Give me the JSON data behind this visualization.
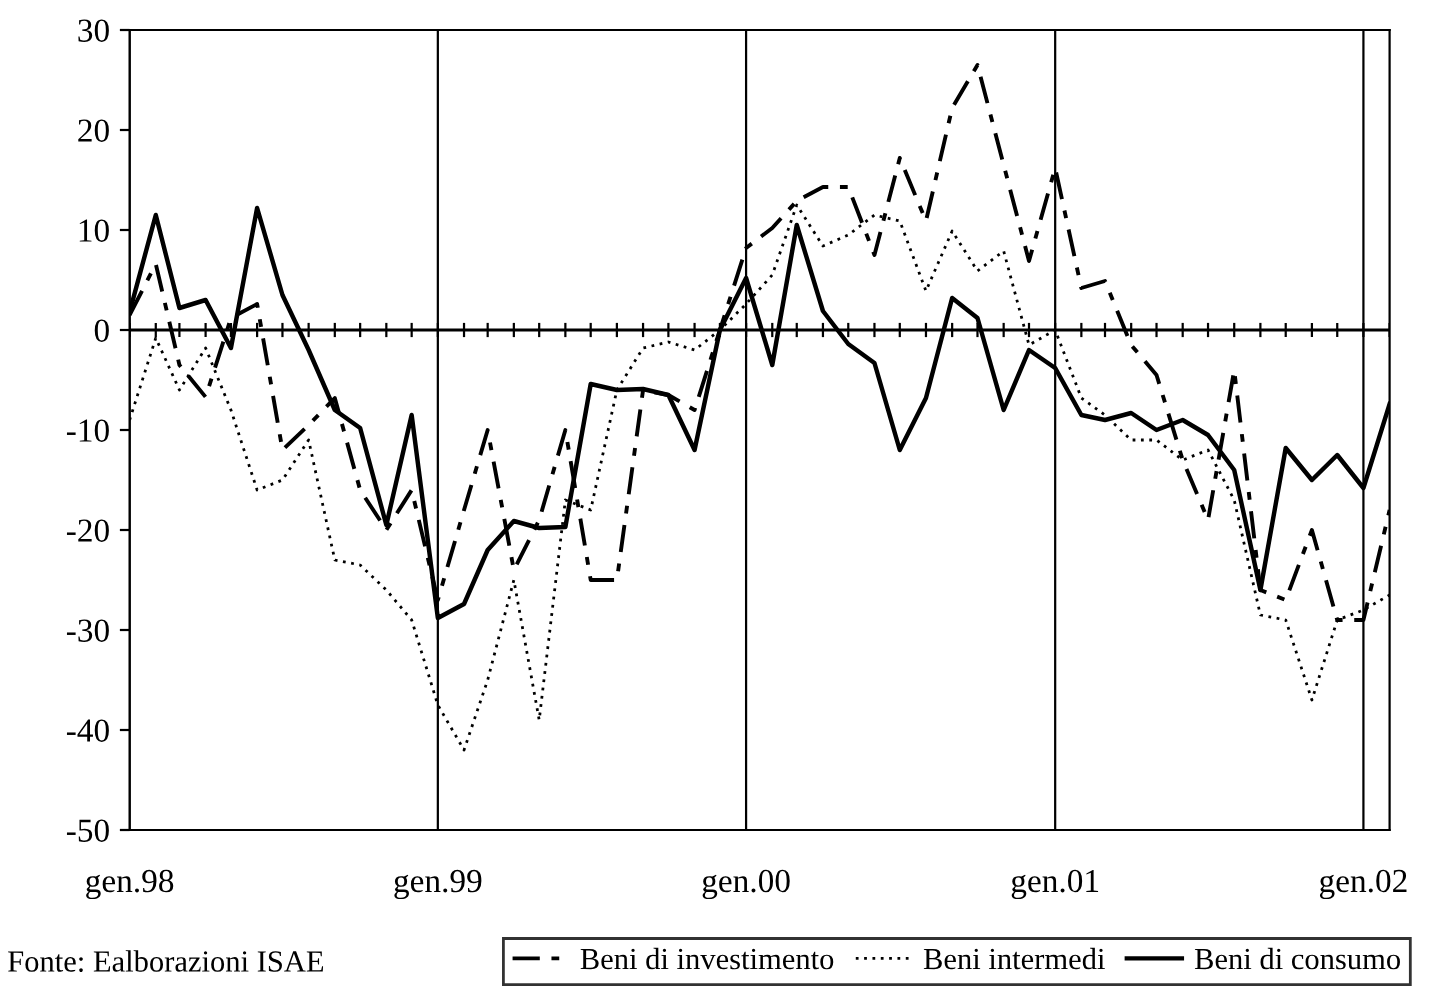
{
  "chart_data": {
    "type": "line",
    "x": [
      "1998-01",
      "1998-02",
      "1998-03",
      "1998-04",
      "1998-05",
      "1998-06",
      "1998-07",
      "1998-08",
      "1998-09",
      "1998-10",
      "1998-11",
      "1998-12",
      "1999-01",
      "1999-02",
      "1999-03",
      "1999-04",
      "1999-05",
      "1999-06",
      "1999-07",
      "1999-08",
      "1999-09",
      "1999-10",
      "1999-11",
      "1999-12",
      "2000-01",
      "2000-02",
      "2000-03",
      "2000-04",
      "2000-05",
      "2000-06",
      "2000-07",
      "2000-08",
      "2000-09",
      "2000-10",
      "2000-11",
      "2000-12",
      "2001-01",
      "2001-02",
      "2001-03",
      "2001-04",
      "2001-05",
      "2001-06",
      "2001-07",
      "2001-08",
      "2001-09",
      "2001-10",
      "2001-11",
      "2001-12",
      "2002-01",
      "2002-02"
    ],
    "series": [
      {
        "name": "Beni di investimento",
        "color": "#000000",
        "line_style": "dashed",
        "values": [
          1.5,
          6.6,
          -3.5,
          -6.7,
          1.2,
          2.6,
          -12,
          -9.5,
          -6.8,
          -16,
          -20,
          -16,
          -27,
          -18,
          -10,
          -24,
          -19,
          -10,
          -25,
          -25,
          -6,
          -6.5,
          -8,
          0,
          8.2,
          10.2,
          12.9,
          14.3,
          14.3,
          7.5,
          17.2,
          10.9,
          22.2,
          26.5,
          16.5,
          6.9,
          16.2,
          4.2,
          4.9,
          -1.5,
          -4.5,
          -13,
          -19,
          -4,
          -26,
          -27,
          -20,
          -29,
          -29,
          -18
        ]
      },
      {
        "name": "Beni intermedi",
        "color": "#000000",
        "line_style": "dotted",
        "values": [
          -9,
          -0.8,
          -6,
          -1.8,
          -8,
          -16,
          -15,
          -11,
          -23,
          -23.5,
          -26,
          -29,
          -37.5,
          -42,
          -35,
          -25,
          -39,
          -17,
          -18,
          -6,
          -1.8,
          -1.2,
          -2,
          0,
          2.6,
          5.5,
          12.5,
          8.4,
          9.5,
          11.5,
          10.9,
          3.9,
          9.9,
          5.9,
          7.9,
          -1.5,
          0,
          -6.8,
          -8.5,
          -11,
          -11,
          -13,
          -12,
          -17,
          -28.5,
          -29,
          -37,
          -29,
          -28,
          -26.5
        ]
      },
      {
        "name": "Beni di consumo",
        "color": "#000000",
        "line_style": "solid",
        "values": [
          1.8,
          11.5,
          2.2,
          3,
          -1.8,
          12.2,
          3.5,
          -2,
          -8,
          -9.8,
          -19.5,
          -8.5,
          -28.8,
          -27.4,
          -22,
          -19.1,
          -19.8,
          -19.7,
          -5.4,
          -6,
          -5.9,
          -6.5,
          -12,
          0,
          5.2,
          -3.5,
          10.5,
          1.9,
          -1.4,
          -3.3,
          -12,
          -6.8,
          3.2,
          1.2,
          -8,
          -2,
          -3.8,
          -8.5,
          -9,
          -8.3,
          -10,
          -9,
          -10.5,
          -14,
          -26,
          -11.8,
          -15,
          -12.5,
          -15.8,
          -7.4
        ]
      }
    ],
    "xlim": [
      "1998-01",
      "2002-02"
    ],
    "xticks": [
      {
        "value": "1998-01",
        "label": "gen.98"
      },
      {
        "value": "1999-01",
        "label": "gen.99"
      },
      {
        "value": "2000-01",
        "label": "gen.00"
      },
      {
        "value": "2001-01",
        "label": "gen.01"
      },
      {
        "value": "2002-01",
        "label": "gen.02"
      }
    ],
    "ylim": [
      -50,
      30
    ],
    "yticks": [
      -50,
      -40,
      -30,
      -20,
      -10,
      0,
      10,
      20,
      30
    ],
    "grid": "x",
    "legend": "bottom",
    "ref_lines": [
      {
        "axis": "y",
        "value": 0,
        "color": "#000000"
      }
    ],
    "annotations": [
      "Fonte: Ealborazioni ISAE"
    ]
  }
}
